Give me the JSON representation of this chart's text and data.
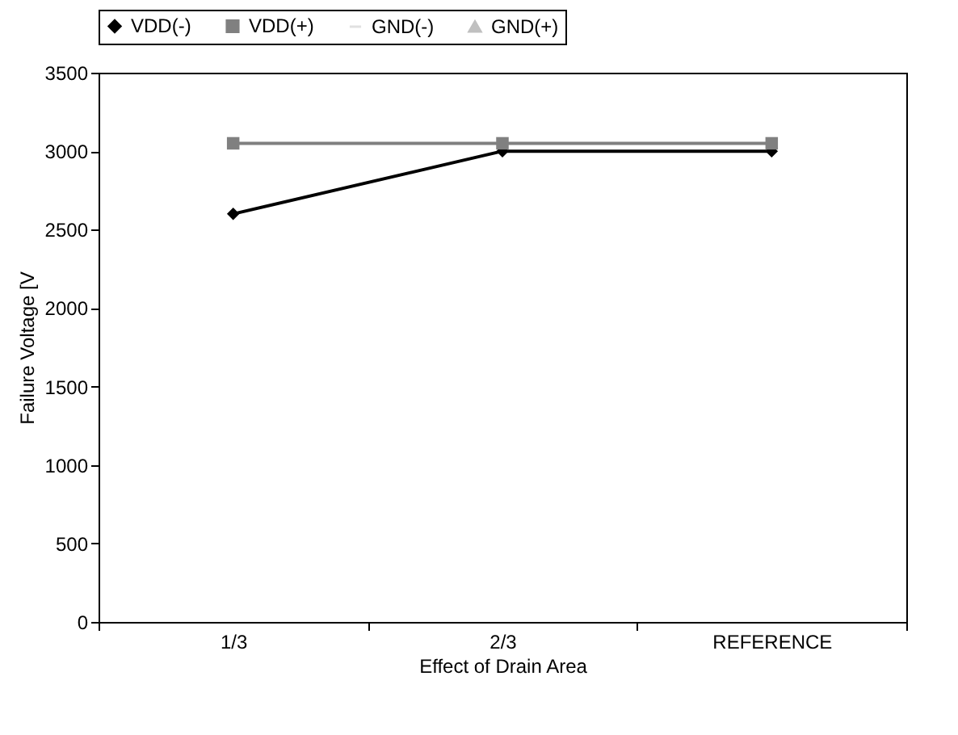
{
  "chart_data": {
    "type": "line",
    "xlabel": "Effect of Drain Area",
    "ylabel": "Failure Voltage [V",
    "categories": [
      "1/3",
      "2/3",
      "REFERENCE"
    ],
    "series": [
      {
        "name": "VDD(-)",
        "color": "#000000",
        "marker": "diamond",
        "values": [
          2600,
          3000,
          3000
        ]
      },
      {
        "name": "VDD(+)",
        "color": "#808080",
        "marker": "square",
        "values": [
          3050,
          3050,
          3050
        ]
      },
      {
        "name": "GND(-)",
        "color": "#e0e0e0",
        "marker": "none",
        "values": [
          null,
          null,
          null
        ]
      },
      {
        "name": "GND(+)",
        "color": "#c0c0c0",
        "marker": "triangle",
        "values": [
          null,
          null,
          null
        ]
      }
    ],
    "ylim": [
      0,
      3500
    ],
    "yticks": [
      0,
      500,
      1000,
      1500,
      2000,
      2500,
      3000,
      3500
    ],
    "grid": false,
    "legend": "top",
    "line_style": "solid"
  }
}
